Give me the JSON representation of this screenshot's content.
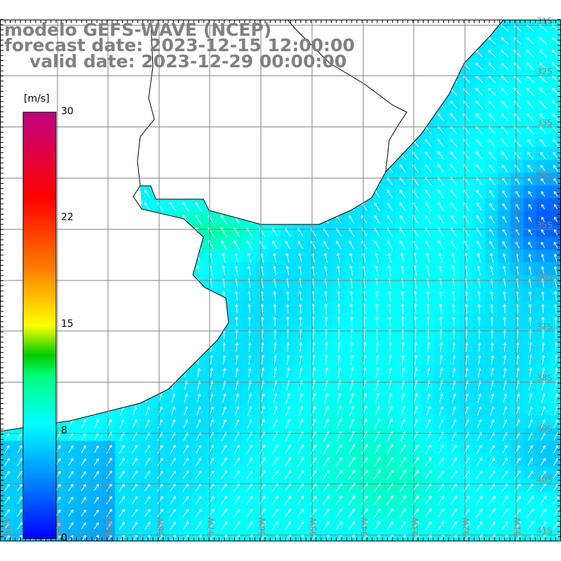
{
  "header": {
    "model": "modelo GEFS-WAVE (NCEP)",
    "forecast_date": "forecast date: 2023-12-15 12:00:00",
    "valid_date": "valid date: 2023-12-29 00:00:00"
  },
  "colorbar": {
    "unit": "[m/s]",
    "ticks": [
      "30",
      "22",
      "15",
      "8",
      "0"
    ],
    "range": [
      0,
      30
    ],
    "colors": [
      "#0000ff",
      "#0080ff",
      "#00ffff",
      "#00ff80",
      "#00cc00",
      "#ffff00",
      "#ff8000",
      "#ff0000",
      "#c00080"
    ]
  },
  "axes": {
    "longitude_labels": [
      "61W",
      "60W",
      "59W",
      "58W",
      "57W",
      "56W",
      "55W",
      "54W",
      "53W",
      "52W",
      "51W"
    ],
    "latitude_labels": [
      "31S",
      "32S",
      "33S",
      "34S",
      "35S",
      "36S",
      "37S",
      "38S",
      "39S",
      "40S",
      "41S"
    ]
  },
  "colors": {
    "grid": "#808080",
    "land": "#ffffff",
    "coast": "#000000",
    "arrow": "#ffffff"
  }
}
